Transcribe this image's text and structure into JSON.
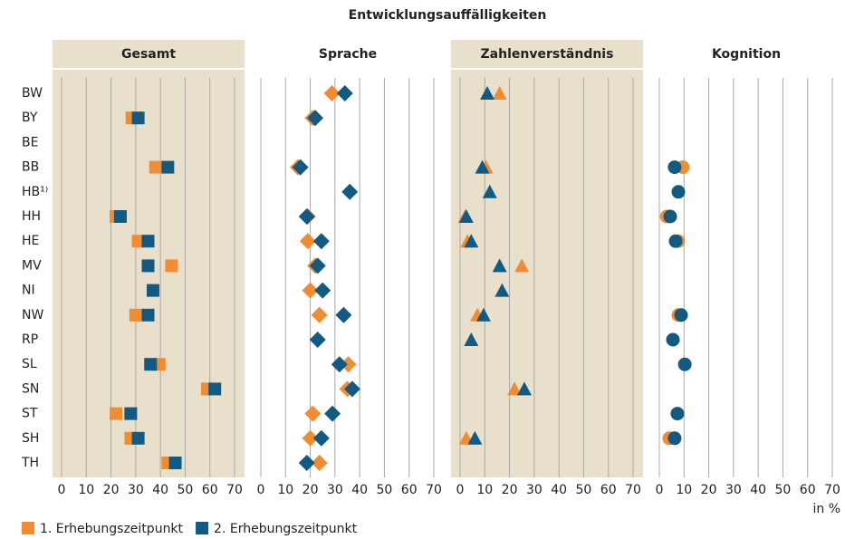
{
  "title": "Entwicklungsauffälligkeiten",
  "categories": [
    "BW",
    "BY",
    "BE",
    "BB",
    "HB¹⁾",
    "HH",
    "HE",
    "MV",
    "NI",
    "NW",
    "RP",
    "SL",
    "SN",
    "ST",
    "SH",
    "TH"
  ],
  "legend": [
    {
      "name": "1. Erhebungszeitpunkt",
      "color": "#f28c32"
    },
    {
      "name": "2. Erhebungszeitpunkt",
      "color": "#135a83"
    }
  ],
  "unit": "in %",
  "chart_data": [
    {
      "type": "scatter",
      "title": "Gesamt",
      "marker": "square",
      "background": "#e9e0cb",
      "xlim": [
        0,
        70
      ],
      "xticks": [
        0,
        10,
        20,
        30,
        40,
        50,
        60,
        70
      ],
      "series": [
        {
          "values": [
            null,
            28.5,
            null,
            38,
            null,
            22,
            31,
            44.5,
            null,
            30,
            null,
            39.5,
            59,
            22,
            28,
            43
          ]
        },
        {
          "values": [
            null,
            31,
            null,
            43,
            null,
            23.8,
            35,
            35,
            37,
            35,
            null,
            36,
            62,
            28,
            31,
            46
          ]
        }
      ]
    },
    {
      "type": "scatter",
      "title": "Sprache",
      "marker": "diamond",
      "background": "#ffffff",
      "xlim": [
        0,
        70
      ],
      "xticks": [
        0,
        10,
        20,
        30,
        40,
        50,
        60,
        70
      ],
      "series": [
        {
          "values": [
            28.8,
            21,
            null,
            15,
            null,
            19,
            19,
            22,
            20,
            23.7,
            null,
            35.4,
            35,
            21,
            20,
            23.7
          ]
        },
        {
          "values": [
            34,
            22,
            null,
            16,
            36,
            18.6,
            24.5,
            23,
            25,
            33.5,
            23,
            31.8,
            37,
            29,
            24.5,
            18.6
          ]
        }
      ]
    },
    {
      "type": "scatter",
      "title": "Zahlenverständnis",
      "marker": "triangle",
      "background": "#e9e0cb",
      "xlim": [
        0,
        70
      ],
      "xticks": [
        0,
        10,
        20,
        30,
        40,
        50,
        60,
        70
      ],
      "series": [
        {
          "values": [
            16,
            null,
            null,
            10.5,
            null,
            2,
            3,
            25,
            null,
            7,
            null,
            null,
            22,
            null,
            2.5,
            null
          ]
        },
        {
          "values": [
            11,
            null,
            null,
            9,
            12,
            2.5,
            4.5,
            16,
            17,
            9.5,
            4.5,
            null,
            26,
            null,
            6,
            null
          ]
        }
      ]
    },
    {
      "type": "scatter",
      "title": "Kognition",
      "marker": "circle",
      "background": "#ffffff",
      "xlim": [
        0,
        70
      ],
      "xticks": [
        0,
        10,
        20,
        30,
        40,
        50,
        60,
        70
      ],
      "series": [
        {
          "values": [
            null,
            null,
            null,
            9.5,
            null,
            3,
            7.7,
            null,
            null,
            7.7,
            null,
            null,
            null,
            null,
            4,
            null
          ]
        },
        {
          "values": [
            null,
            null,
            null,
            6.2,
            7.7,
            4.4,
            6.6,
            null,
            null,
            8.8,
            5.5,
            10.3,
            null,
            7.3,
            6.2,
            null
          ]
        }
      ]
    }
  ]
}
